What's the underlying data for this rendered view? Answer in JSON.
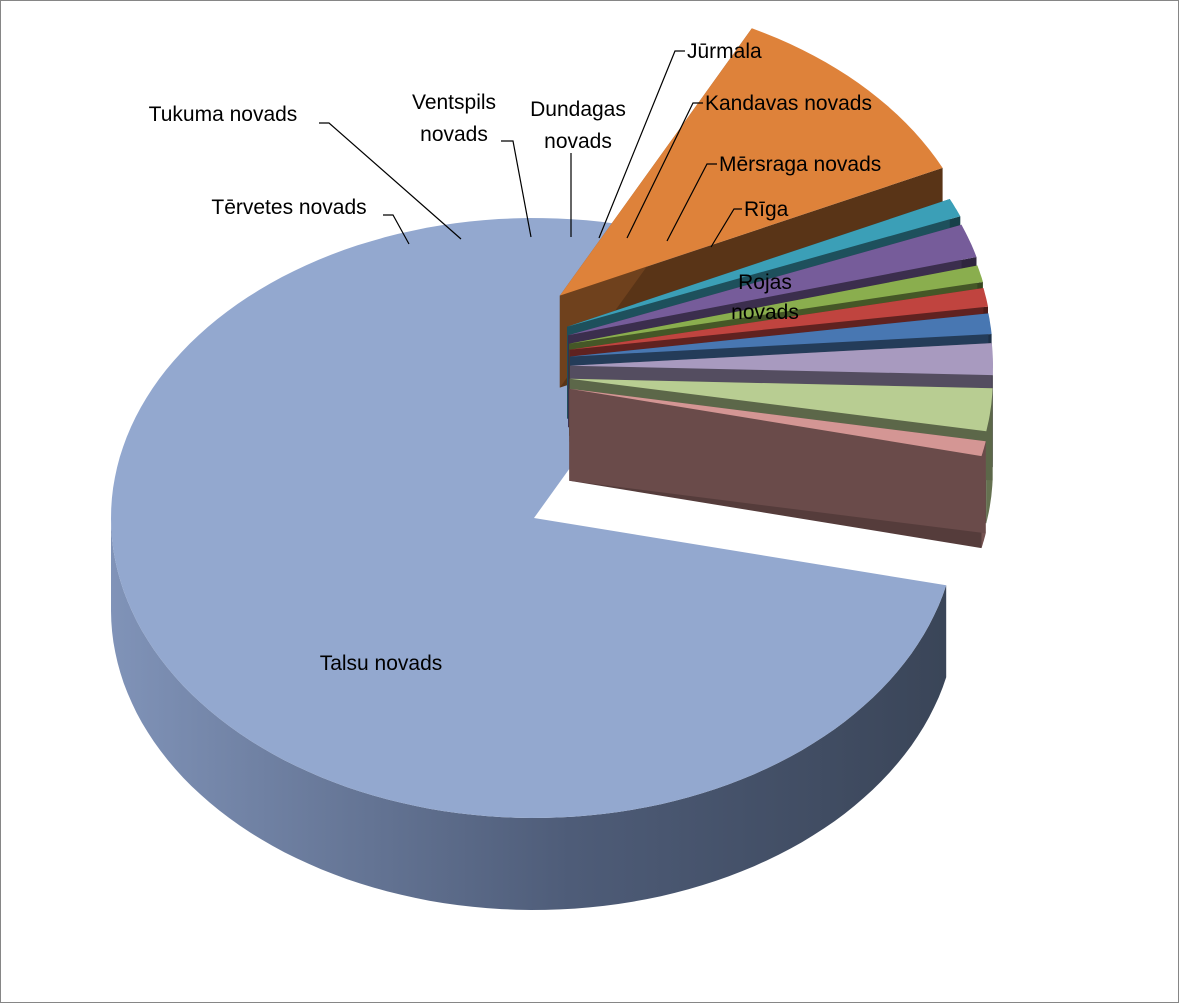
{
  "chart_data": {
    "type": "pie",
    "style": "3d-exploded",
    "title": "",
    "legend": "none",
    "slices": [
      {
        "label": "Talsu novads",
        "value": 78.9,
        "color": "#93a8cf",
        "exploded": false
      },
      {
        "label": "Rojas novads",
        "value": 10.5,
        "color": "#de823a",
        "exploded": true
      },
      {
        "label": "Rīga",
        "value": 1.0,
        "color": "#3b9fb7",
        "exploded": true
      },
      {
        "label": "Mērsraga novads",
        "value": 1.8,
        "color": "#765c9a",
        "exploded": true
      },
      {
        "label": "Kandavas novads",
        "value": 0.9,
        "color": "#8aae4e",
        "exploded": true
      },
      {
        "label": "Jūrmala",
        "value": 1.0,
        "color": "#c0443f",
        "exploded": true
      },
      {
        "label": "Dundagas novads",
        "value": 1.1,
        "color": "#4877b2",
        "exploded": true
      },
      {
        "label": "Ventspils novads",
        "value": 1.7,
        "color": "#a89abf",
        "exploded": true
      },
      {
        "label": "Tukuma novads",
        "value": 2.3,
        "color": "#b8cd92",
        "exploded": true
      },
      {
        "label": "Tērvetes novads",
        "value": 0.8,
        "color": "#d49694",
        "exploded": true
      }
    ]
  }
}
